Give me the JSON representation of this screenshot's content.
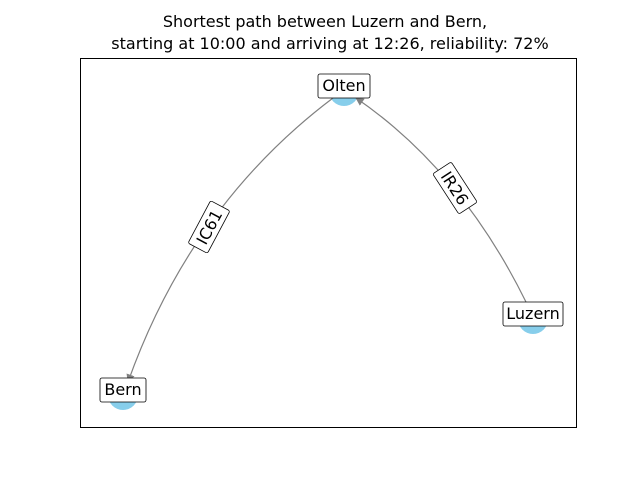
{
  "title": {
    "line1": "Shortest path between Luzern and Bern,",
    "line2": "starting at 10:00 and arriving at 12:26, reliability: 72%"
  },
  "graph": {
    "node_color": "#87ceeb",
    "edge_color": "#808080",
    "nodes": [
      {
        "id": "olten",
        "label": "Olten"
      },
      {
        "id": "luzern",
        "label": "Luzern"
      },
      {
        "id": "bern",
        "label": "Bern"
      }
    ],
    "edges": [
      {
        "from": "luzern",
        "to": "olten",
        "label": "IR26"
      },
      {
        "from": "olten",
        "to": "bern",
        "label": "IC61"
      }
    ]
  }
}
